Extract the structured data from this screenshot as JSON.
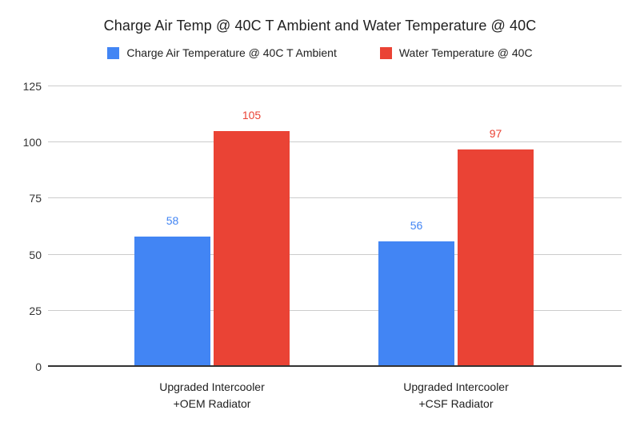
{
  "chart_data": {
    "type": "bar",
    "title": "Charge Air Temp @ 40C T Ambient and Water Temperature @ 40C",
    "categories": [
      "Upgraded Intercooler\n+OEM Radiator",
      "Upgraded Intercooler\n+CSF Radiator"
    ],
    "series": [
      {
        "name": "Charge Air Temperature @ 40C T Ambient",
        "color": "#4285F4",
        "values": [
          58,
          56
        ]
      },
      {
        "name": "Water Temperature @ 40C",
        "color": "#EA4335",
        "values": [
          105,
          97
        ]
      }
    ],
    "yticks": [
      0,
      25,
      50,
      75,
      100,
      125
    ],
    "ylim": [
      0,
      125
    ],
    "xlabel": "",
    "ylabel": "",
    "grid": true,
    "legend_position": "top",
    "data_labels": true,
    "colors": {
      "background": "#ffffff",
      "gridline": "#cccccc",
      "axis_line": "#333333",
      "tick_text": "#333333",
      "title_text": "#212121"
    }
  }
}
